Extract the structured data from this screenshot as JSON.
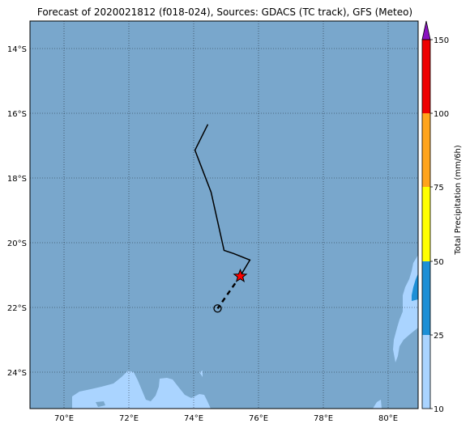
{
  "title": "Forecast of 2020021812 (f018-024), Sources: GDACS (TC track), GFS (Meteo)",
  "map": {
    "lon_range": [
      69,
      81
    ],
    "lat_range": [
      -25.1,
      -13.1
    ],
    "lon_ticks": [
      "70°E",
      "72°E",
      "74°E",
      "76°E",
      "78°E",
      "80°E"
    ],
    "lat_ticks": [
      "14°S",
      "16°S",
      "18°S",
      "20°S",
      "22°S",
      "24°S"
    ],
    "grid": "dotted",
    "ocean_color": "#79a7cc",
    "land_color": "#aad4ff"
  },
  "track": {
    "past_points": [
      [
        74.5,
        -16.3
      ],
      [
        74.1,
        -17.1
      ],
      [
        74.6,
        -18.4
      ],
      [
        75.0,
        -20.2
      ],
      [
        75.3,
        -20.3
      ],
      [
        75.8,
        -20.5
      ],
      [
        75.5,
        -21.0
      ]
    ],
    "current_position": [
      75.5,
      -21.0
    ],
    "forecast_points": [
      [
        75.5,
        -21.0
      ],
      [
        74.8,
        -22.0
      ]
    ],
    "forecast_marker": [
      74.8,
      -22.0
    ]
  },
  "colorbar": {
    "label": "Total Precipitation (mm/6h)",
    "tick_labels": [
      "10",
      "25",
      "50",
      "75",
      "100",
      "150"
    ],
    "bands": [
      {
        "from": "10",
        "to": "25",
        "color": "#aad4ff"
      },
      {
        "from": "25",
        "to": "50",
        "color": "#1c8fd6"
      },
      {
        "from": "50",
        "to": "75",
        "color": "#ffff00"
      },
      {
        "from": "75",
        "to": "100",
        "color": "#ffa41c"
      },
      {
        "from": "100",
        "to": "150",
        "color": "#ee0000"
      }
    ],
    "extend_color": "#8a12c0"
  }
}
